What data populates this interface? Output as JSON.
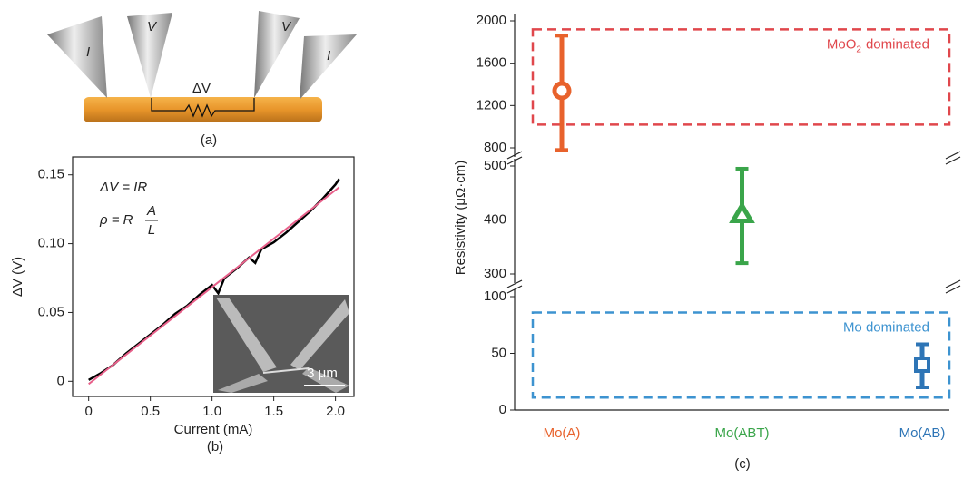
{
  "diagram": {
    "probe_labels": [
      "I",
      "V",
      "V",
      "I"
    ],
    "voltage_label": "ΔV",
    "caption": "(a)"
  },
  "chart_data": [
    {
      "type": "line",
      "x_label": "Current (mA)",
      "y_label": "ΔV (V)",
      "caption": "(b)",
      "annotations": [
        "ΔV = IR"
      ],
      "formula": {
        "lhs": "ρ = R",
        "numerator": "A",
        "denominator": "L"
      },
      "inset_scale_label": "3 μm",
      "xlim": [
        -0.13,
        2.15
      ],
      "ylim": [
        -0.011,
        0.163
      ],
      "xticks": [
        0,
        0.5,
        {
          "value": 1,
          "label": "1.0"
        },
        1.5,
        {
          "value": 2,
          "label": "2.0"
        }
      ],
      "yticks": [
        0,
        0.05,
        {
          "value": 0.1,
          "label": "0.10"
        },
        0.15
      ],
      "series": [
        {
          "color": "#000000",
          "x": [
            0,
            0.1,
            0.2,
            0.3,
            0.4,
            0.5,
            0.6,
            0.7,
            0.8,
            0.9,
            1.0,
            1.05,
            1.1,
            1.2,
            1.3,
            1.35,
            1.4,
            1.5,
            1.6,
            1.7,
            1.8,
            1.9,
            2.0,
            2.03
          ],
          "values": [
            0.001,
            0.006,
            0.012,
            0.02,
            0.027,
            0.034,
            0.041,
            0.049,
            0.055,
            0.063,
            0.07,
            0.064,
            0.075,
            0.082,
            0.09,
            0.086,
            0.096,
            0.101,
            0.108,
            0.116,
            0.124,
            0.133,
            0.143,
            0.147
          ]
        },
        {
          "color": "#e8608a",
          "x": [
            0,
            2.03
          ],
          "values": [
            -0.002,
            0.141
          ]
        }
      ]
    },
    {
      "type": "errorbar",
      "y_label": "Resistivity (μΩ·cm)",
      "caption": "(c)",
      "categories": [
        "Mo(A)",
        "Mo(ABT)",
        "Mo(AB)"
      ],
      "colors": [
        "#e8622c",
        "#3aa54a",
        "#2e75b6"
      ],
      "markers": [
        "circle",
        "triangle",
        "square"
      ],
      "values": [
        1340,
        410,
        40
      ],
      "lower": [
        780,
        320,
        20
      ],
      "upper": [
        1860,
        495,
        58
      ],
      "segments": [
        {
          "ylim": [
            0,
            100
          ],
          "yticks": [
            0,
            50,
            100
          ]
        },
        {
          "ylim": [
            300,
            500
          ],
          "yticks": [
            300,
            400,
            500
          ]
        },
        {
          "ylim": [
            800,
            2000
          ],
          "yticks": [
            800,
            1200,
            1600,
            2000
          ]
        }
      ],
      "regions": [
        {
          "label": {
            "text": "MoO",
            "subscript": "2",
            "suffix": "dominated"
          },
          "color": "#e0474c",
          "range": [
            1020,
            1920
          ]
        },
        {
          "label": {
            "text": "Mo dominated"
          },
          "color": "#3d93d0",
          "range": [
            11,
            86
          ]
        }
      ]
    }
  ]
}
